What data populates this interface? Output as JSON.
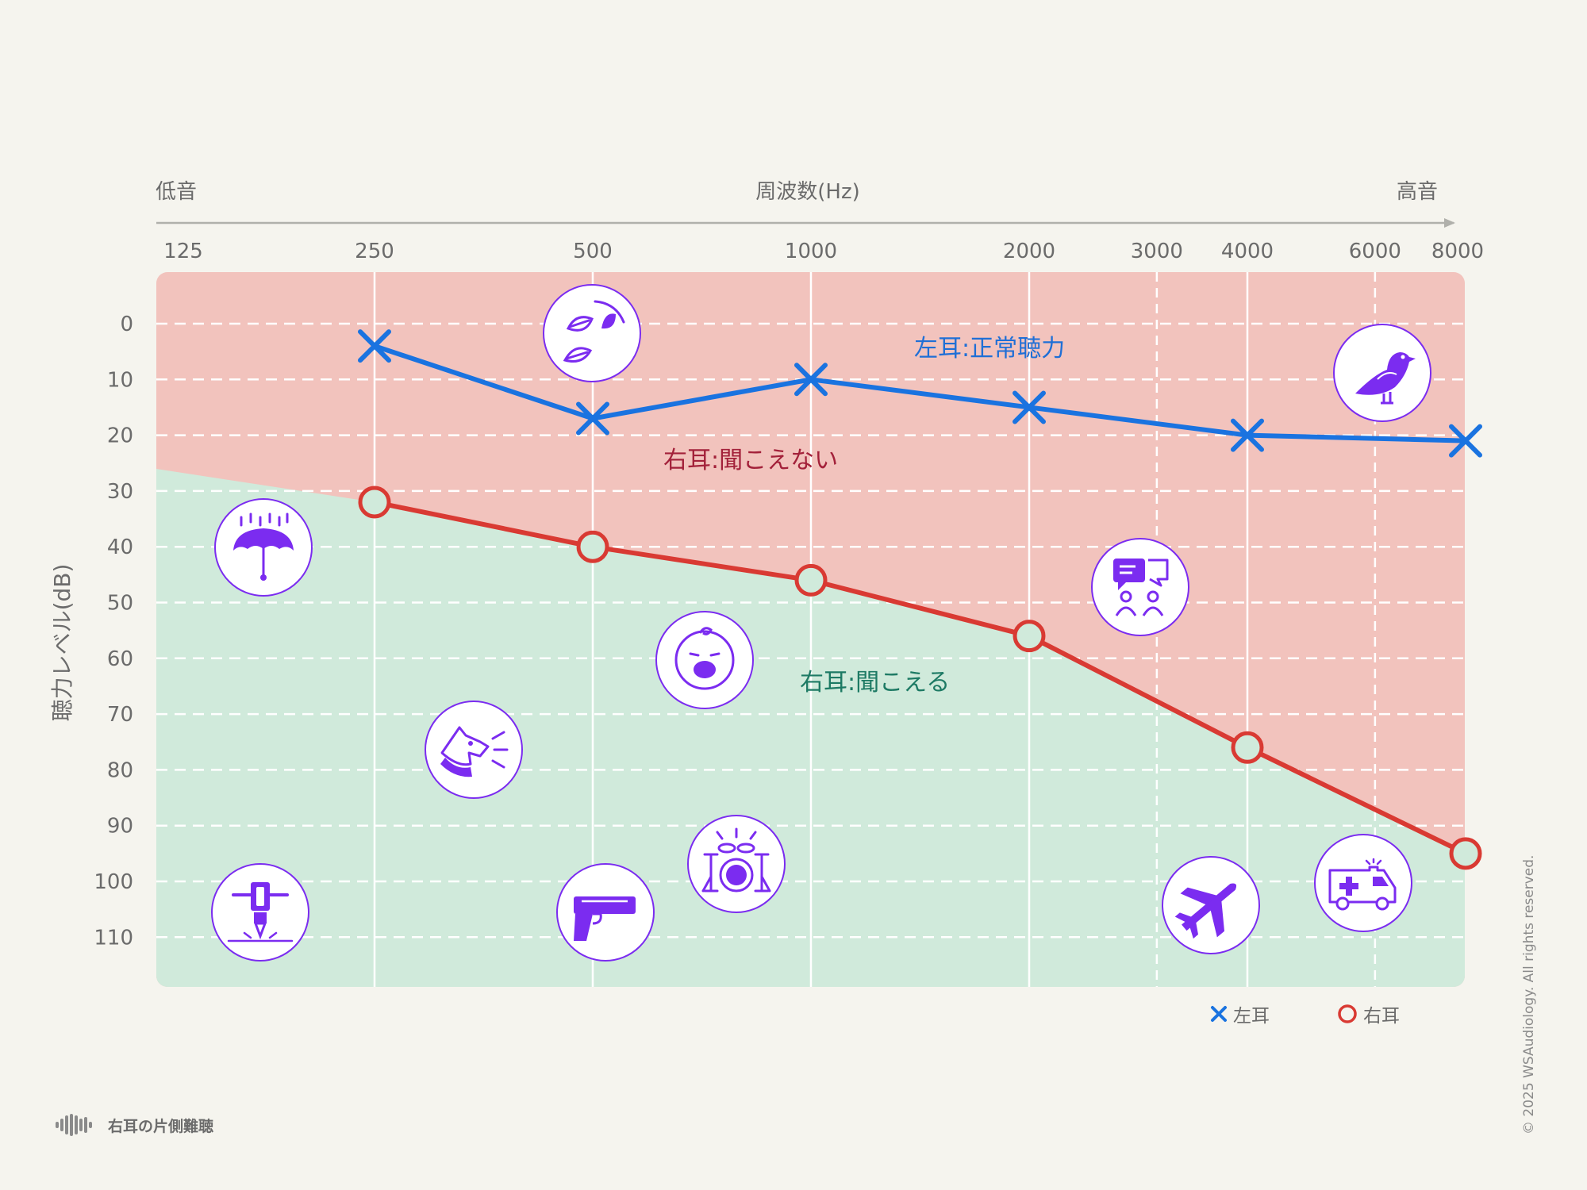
{
  "colors": {
    "background": "#f5f4ee",
    "red_zone": "#f2c3bd",
    "green_zone": "#d0eadb",
    "left_ear": "#1a73e0",
    "right_ear": "#d93a33",
    "icon": "#7b2cf0",
    "left_label": "#1f6fd6",
    "right_red_label": "#a3213a",
    "right_green_label": "#1d7a64",
    "axis_text": "#6b6b6b"
  },
  "chart_data": {
    "type": "line",
    "title": "",
    "x_top_label": "周波数(Hz)",
    "x_low_label": "低音",
    "x_high_label": "高音",
    "ylabel": "聴力レベル(dB)",
    "x_ticks": [
      "125",
      "250",
      "500",
      "1000",
      "2000",
      "3000",
      "4000",
      "6000",
      "8000"
    ],
    "y_ticks": [
      "0",
      "10",
      "20",
      "30",
      "40",
      "50",
      "60",
      "70",
      "80",
      "90",
      "100",
      "110"
    ],
    "ylim": [
      -9,
      119
    ],
    "y_inverted": true,
    "grid": true,
    "legend_position": "bottom-right",
    "series": [
      {
        "name": "左耳",
        "marker": "x",
        "x": [
          250,
          500,
          1000,
          2000,
          4000,
          8000
        ],
        "values": [
          4,
          17,
          10,
          15,
          20,
          21
        ]
      },
      {
        "name": "右耳",
        "marker": "o",
        "x": [
          250,
          500,
          1000,
          2000,
          4000,
          8000
        ],
        "values": [
          32,
          40,
          46,
          56,
          76,
          95
        ]
      }
    ],
    "annotations": {
      "left_normal": "左耳:正常聴力",
      "right_cannot_hear": "右耳:聞こえない",
      "right_can_hear": "右耳:聞こえる"
    },
    "icons": [
      "leaves-rustling-icon",
      "bird-icon",
      "rain-umbrella-icon",
      "conversation-icon",
      "crying-baby-icon",
      "barking-dog-icon",
      "jackhammer-icon",
      "handgun-icon",
      "drum-kit-icon",
      "airplane-icon",
      "ambulance-icon"
    ]
  },
  "legend": {
    "left": "左耳",
    "right": "右耳"
  },
  "footer": {
    "title": "右耳の片側難聴",
    "copyright": "© 2025 WSAudiology. All rights reserved."
  }
}
